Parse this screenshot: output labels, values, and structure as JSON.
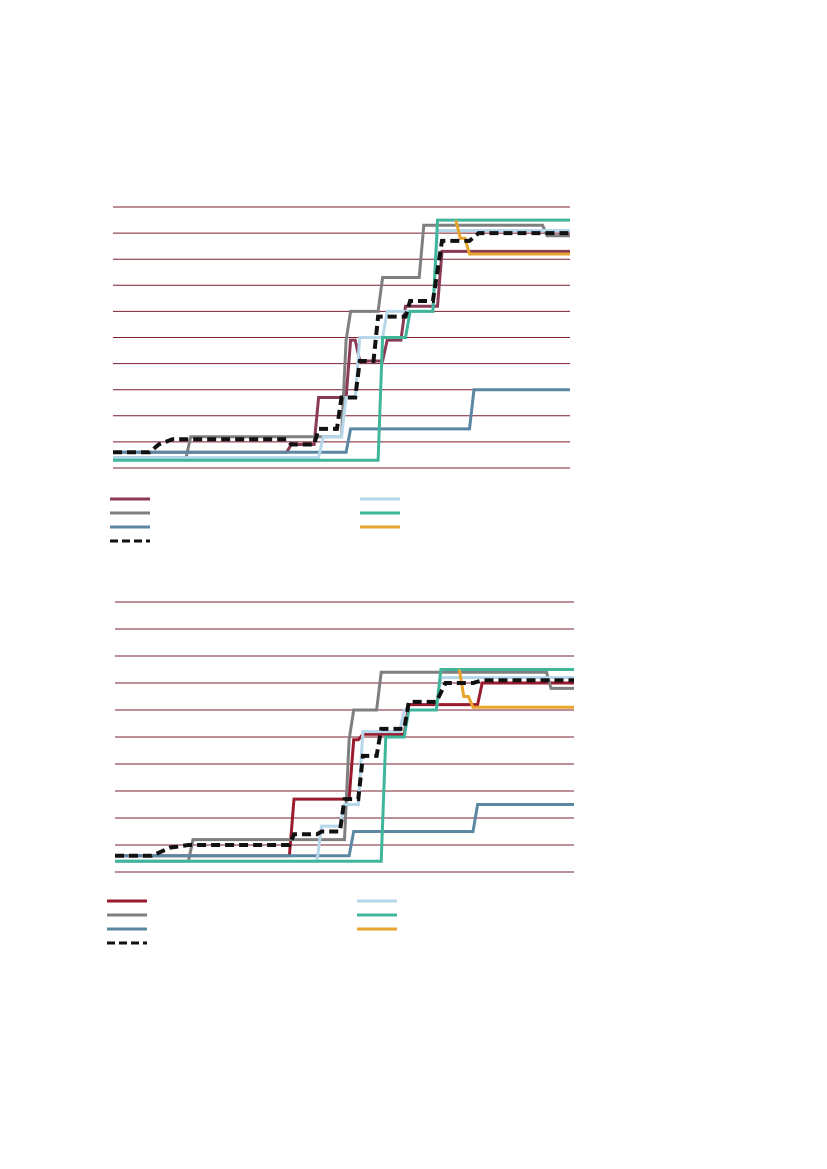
{
  "colors": {
    "grid": "#7a1e2e",
    "series_1": "#8b3a55",
    "series_2": "#7f7f7f",
    "series_3": "#5b87a3",
    "series_4": "#111111",
    "series_5": "#b6d7ea",
    "series_6": "#3fb59c",
    "series_7": "#e8a52d",
    "series_1_bottom": "#9a1a2e"
  },
  "chart_data": [
    {
      "type": "line",
      "step": true,
      "grid": true,
      "gridlines": 11,
      "xlim": [
        0,
        100
      ],
      "ylim": [
        0,
        10
      ],
      "legend_position": "bottom",
      "series": [
        {
          "key": "s1",
          "color": "series_1",
          "points": [
            [
              0,
              0.6
            ],
            [
              38,
              0.6
            ],
            [
              39,
              0.9
            ],
            [
              44,
              0.9
            ],
            [
              45,
              2.7
            ],
            [
              51,
              2.7
            ],
            [
              52,
              4.9
            ],
            [
              53,
              4.9
            ],
            [
              54,
              4.1
            ],
            [
              59,
              4.1
            ],
            [
              60,
              4.9
            ],
            [
              63,
              4.9
            ],
            [
              64,
              6.2
            ],
            [
              71,
              6.2
            ],
            [
              72,
              8.3
            ],
            [
              100,
              8.3
            ]
          ]
        },
        {
          "key": "s2",
          "color": "series_2",
          "points": [
            [
              0,
              0.4
            ],
            [
              16,
              0.4
            ],
            [
              17,
              1.2
            ],
            [
              50,
              1.2
            ],
            [
              51,
              4.9
            ],
            [
              52,
              6.0
            ],
            [
              58,
              6.0
            ],
            [
              59,
              7.3
            ],
            [
              67,
              7.3
            ],
            [
              68,
              9.3
            ],
            [
              94,
              9.3
            ],
            [
              95,
              8.9
            ],
            [
              100,
              8.9
            ]
          ]
        },
        {
          "key": "s3",
          "color": "series_3",
          "points": [
            [
              0,
              0.6
            ],
            [
              51,
              0.6
            ],
            [
              52,
              1.5
            ],
            [
              78,
              1.5
            ],
            [
              79,
              3.0
            ],
            [
              100,
              3.0
            ]
          ]
        },
        {
          "key": "s4",
          "color": "series_4",
          "dashed": true,
          "points": [
            [
              0,
              0.6
            ],
            [
              8,
              0.6
            ],
            [
              10,
              0.9
            ],
            [
              13,
              1.1
            ],
            [
              38,
              1.1
            ],
            [
              39,
              0.9
            ],
            [
              44,
              0.9
            ],
            [
              45,
              1.5
            ],
            [
              49,
              1.5
            ],
            [
              50,
              2.7
            ],
            [
              53,
              2.7
            ],
            [
              54,
              4.1
            ],
            [
              57,
              4.1
            ],
            [
              58,
              5.8
            ],
            [
              64,
              5.8
            ],
            [
              65,
              6.4
            ],
            [
              70,
              6.4
            ],
            [
              72,
              8.7
            ],
            [
              78,
              8.7
            ],
            [
              80,
              9.0
            ],
            [
              100,
              9.0
            ]
          ]
        },
        {
          "key": "s5",
          "color": "series_5",
          "points": [
            [
              0,
              0.4
            ],
            [
              45,
              0.4
            ],
            [
              46,
              1.2
            ],
            [
              50,
              1.2
            ],
            [
              51,
              2.7
            ],
            [
              53,
              2.7
            ],
            [
              54,
              5.0
            ],
            [
              59,
              5.0
            ],
            [
              60,
              6.0
            ],
            [
              70,
              6.0
            ],
            [
              71,
              9.1
            ],
            [
              100,
              9.1
            ]
          ]
        },
        {
          "key": "s6",
          "color": "series_6",
          "points": [
            [
              0,
              0.3
            ],
            [
              58,
              0.3
            ],
            [
              59,
              5.0
            ],
            [
              64,
              5.0
            ],
            [
              65,
              6.0
            ],
            [
              70,
              6.0
            ],
            [
              71,
              9.5
            ],
            [
              100,
              9.5
            ]
          ]
        },
        {
          "key": "s7",
          "color": "series_7",
          "points": [
            [
              75,
              9.5
            ],
            [
              76,
              8.8
            ],
            [
              77,
              8.8
            ],
            [
              78,
              8.2
            ],
            [
              100,
              8.2
            ]
          ]
        }
      ],
      "legend": [
        {
          "key": "s1",
          "label": ""
        },
        {
          "key": "s5",
          "label": ""
        },
        {
          "key": "s2",
          "label": ""
        },
        {
          "key": "s6",
          "label": ""
        },
        {
          "key": "s3",
          "label": ""
        },
        {
          "key": "s7",
          "label": ""
        },
        {
          "key": "s4",
          "label": ""
        }
      ]
    },
    {
      "type": "line",
      "step": true,
      "grid": true,
      "gridlines": 11,
      "xlim": [
        0,
        100
      ],
      "ylim": [
        0,
        10
      ],
      "legend_position": "bottom",
      "series": [
        {
          "key": "s1",
          "color": "series_1_bottom",
          "points": [
            [
              0,
              0.6
            ],
            [
              38,
              0.6
            ],
            [
              39,
              2.7
            ],
            [
              51,
              2.7
            ],
            [
              52,
              4.9
            ],
            [
              53,
              4.9
            ],
            [
              54,
              5.1
            ],
            [
              63,
              5.1
            ],
            [
              64,
              6.2
            ],
            [
              79,
              6.2
            ],
            [
              80,
              7.0
            ],
            [
              100,
              7.0
            ]
          ]
        },
        {
          "key": "s2",
          "color": "series_2",
          "points": [
            [
              0,
              0.4
            ],
            [
              16,
              0.4
            ],
            [
              17,
              1.2
            ],
            [
              50,
              1.2
            ],
            [
              51,
              4.9
            ],
            [
              52,
              6.0
            ],
            [
              57,
              6.0
            ],
            [
              58,
              7.4
            ],
            [
              94,
              7.4
            ],
            [
              95,
              6.8
            ],
            [
              100,
              6.8
            ]
          ]
        },
        {
          "key": "s3",
          "color": "series_3",
          "points": [
            [
              0,
              0.6
            ],
            [
              51,
              0.6
            ],
            [
              52,
              1.5
            ],
            [
              78,
              1.5
            ],
            [
              79,
              2.5
            ],
            [
              100,
              2.5
            ]
          ]
        },
        {
          "key": "s4",
          "color": "series_4",
          "dashed": true,
          "points": [
            [
              0,
              0.6
            ],
            [
              8,
              0.6
            ],
            [
              12,
              0.9
            ],
            [
              16,
              1.0
            ],
            [
              38,
              1.0
            ],
            [
              39,
              1.4
            ],
            [
              44,
              1.4
            ],
            [
              45,
              1.5
            ],
            [
              49,
              1.5
            ],
            [
              50,
              2.7
            ],
            [
              53,
              2.7
            ],
            [
              54,
              4.3
            ],
            [
              57,
              4.3
            ],
            [
              58,
              5.3
            ],
            [
              63,
              5.3
            ],
            [
              64,
              6.3
            ],
            [
              70,
              6.3
            ],
            [
              72,
              7.0
            ],
            [
              78,
              7.0
            ],
            [
              80,
              7.1
            ],
            [
              100,
              7.1
            ]
          ]
        },
        {
          "key": "s5",
          "color": "series_5",
          "points": [
            [
              0,
              0.4
            ],
            [
              44,
              0.4
            ],
            [
              45,
              1.7
            ],
            [
              49,
              1.7
            ],
            [
              50,
              2.5
            ],
            [
              53,
              2.5
            ],
            [
              54,
              5.2
            ],
            [
              62,
              5.2
            ],
            [
              63,
              6.0
            ],
            [
              70,
              6.0
            ],
            [
              71,
              7.2
            ],
            [
              100,
              7.2
            ]
          ]
        },
        {
          "key": "s6",
          "color": "series_6",
          "points": [
            [
              0,
              0.4
            ],
            [
              58,
              0.4
            ],
            [
              59,
              5.0
            ],
            [
              63,
              5.0
            ],
            [
              64,
              6.0
            ],
            [
              70,
              6.0
            ],
            [
              71,
              7.5
            ],
            [
              100,
              7.5
            ]
          ]
        },
        {
          "key": "s7",
          "color": "series_7",
          "points": [
            [
              75,
              7.5
            ],
            [
              76,
              6.5
            ],
            [
              77,
              6.5
            ],
            [
              78,
              6.1
            ],
            [
              100,
              6.1
            ]
          ]
        }
      ],
      "legend": [
        {
          "key": "s1",
          "label": ""
        },
        {
          "key": "s5",
          "label": ""
        },
        {
          "key": "s2",
          "label": ""
        },
        {
          "key": "s6",
          "label": ""
        },
        {
          "key": "s3",
          "label": ""
        },
        {
          "key": "s7",
          "label": ""
        },
        {
          "key": "s4",
          "label": ""
        }
      ]
    }
  ]
}
